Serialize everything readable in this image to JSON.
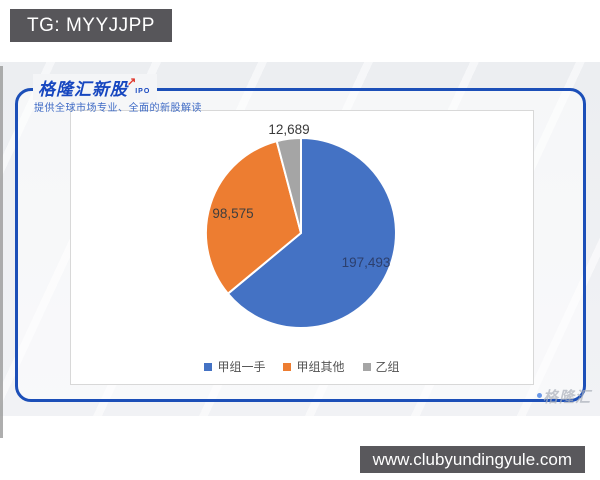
{
  "overlays": {
    "tg_banner": "TG: MYYJJPP",
    "site_banner": "www.clubyundingyule.com"
  },
  "brand": {
    "logo_text": "格隆汇新股",
    "logo_sub": "IPO",
    "logo_arrow_icon": "↗",
    "tagline": "提供全球市场专业、全面的新股解读",
    "watermark": "格隆汇",
    "accent_blue": "#1c4fb8"
  },
  "chart_data": {
    "type": "pie",
    "title": "",
    "start_angle_deg": 0,
    "direction": "clockwise",
    "legend_position": "bottom",
    "points": [
      {
        "name": "甲组一手",
        "value": 197493,
        "label": "197,493",
        "color": "#4472C4"
      },
      {
        "name": "甲组其他",
        "value": 98575,
        "label": "98,575",
        "color": "#ED7D31"
      },
      {
        "name": "乙组",
        "value": 12689,
        "label": "12,689",
        "color": "#A5A5A5"
      }
    ]
  }
}
